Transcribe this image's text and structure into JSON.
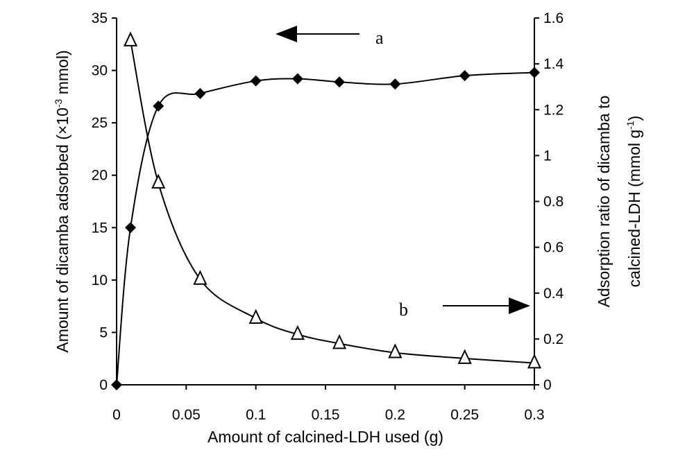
{
  "chart_data": {
    "type": "line",
    "title": "",
    "xlabel": "Amount of calcined-LDH used (g)",
    "xlim": [
      0,
      0.3
    ],
    "x_ticks": [
      {
        "value": 0,
        "label": "0"
      },
      {
        "value": 0.05,
        "label": "0.05"
      },
      {
        "value": 0.1,
        "label": "0.1"
      },
      {
        "value": 0.15,
        "label": "0.15"
      },
      {
        "value": 0.2,
        "label": "0.2"
      },
      {
        "value": 0.25,
        "label": "0.25"
      },
      {
        "value": 0.3,
        "label": "0.3"
      }
    ],
    "ylabel_left": {
      "pre": "Amount of dicamba adsorbed (×10",
      "sup": "-3",
      "post": " mmol)"
    },
    "ylim_left": [
      0,
      35
    ],
    "y_ticks_left": [
      {
        "value": 0,
        "label": "0"
      },
      {
        "value": 5,
        "label": "5"
      },
      {
        "value": 10,
        "label": "10"
      },
      {
        "value": 15,
        "label": "15"
      },
      {
        "value": 20,
        "label": "20"
      },
      {
        "value": 25,
        "label": "25"
      },
      {
        "value": 30,
        "label": "30"
      },
      {
        "value": 35,
        "label": "35"
      }
    ],
    "ylabel_right_line1": "Adsorption ratio of dicamba to",
    "ylabel_right_line2": {
      "pre": "calcined-LDH (mmol g",
      "sup": "-1",
      "post": ")"
    },
    "ylim_right": [
      0,
      1.6
    ],
    "y_ticks_right": [
      {
        "value": 0,
        "label": "0"
      },
      {
        "value": 0.2,
        "label": "0.2"
      },
      {
        "value": 0.4,
        "label": "0.4"
      },
      {
        "value": 0.6,
        "label": "0.6"
      },
      {
        "value": 0.8,
        "label": "0.8"
      },
      {
        "value": 1,
        "label": "1"
      },
      {
        "value": 1.2,
        "label": "1.2"
      },
      {
        "value": 1.4,
        "label": "1.4"
      },
      {
        "value": 1.6,
        "label": "1.6"
      }
    ],
    "series": [
      {
        "name": "a",
        "axis": "left",
        "marker": "filled-diamond",
        "arrow": "left",
        "x": [
          0,
          0.01,
          0.03,
          0.06,
          0.1,
          0.13,
          0.16,
          0.2,
          0.25,
          0.3
        ],
        "values": [
          0,
          15,
          26.6,
          27.8,
          29,
          29.2,
          28.9,
          28.7,
          29.5,
          29.8
        ]
      },
      {
        "name": "b",
        "axis": "right",
        "marker": "open-triangle",
        "arrow": "right",
        "x": [
          0.01,
          0.03,
          0.06,
          0.1,
          0.13,
          0.16,
          0.2,
          0.25,
          0.3
        ],
        "values": [
          1.5,
          0.88,
          0.46,
          0.29,
          0.22,
          0.18,
          0.14,
          0.115,
          0.095
        ]
      }
    ]
  }
}
